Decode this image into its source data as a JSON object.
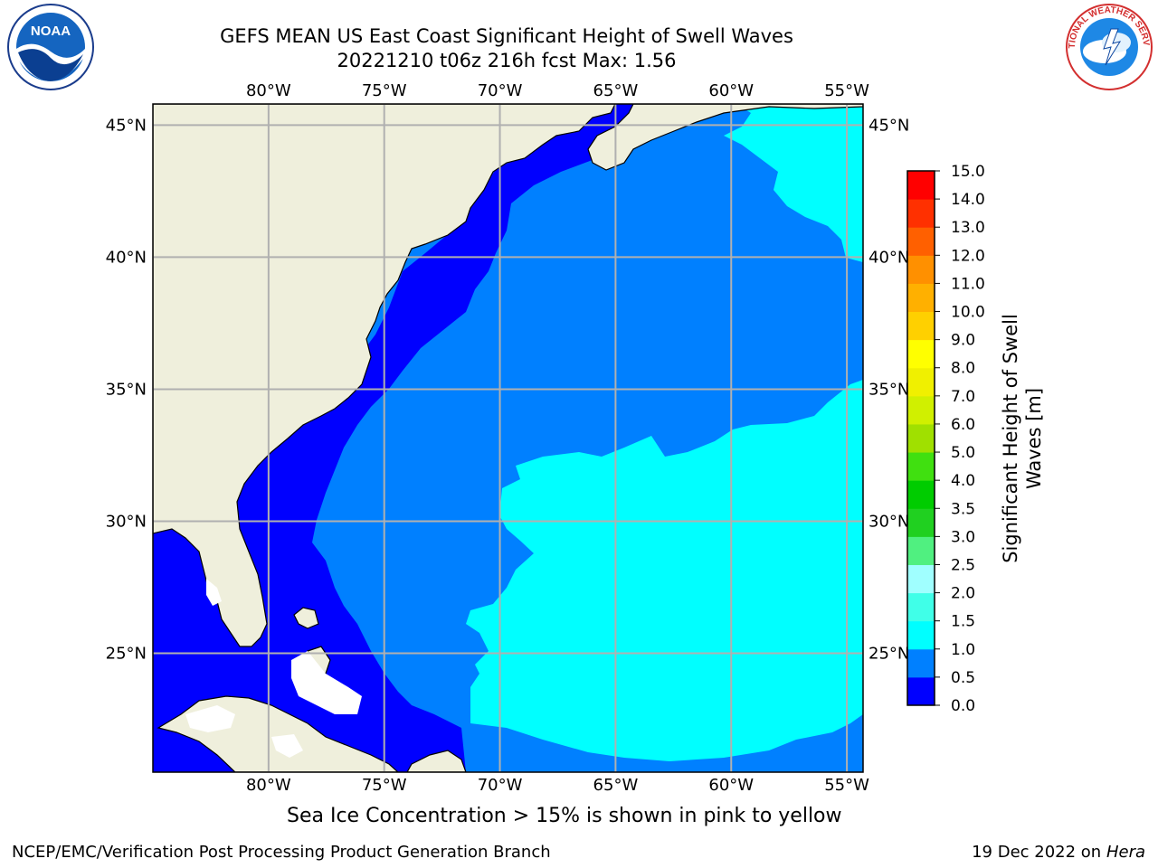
{
  "header": {
    "title_line1": "GEFS MEAN US East Coast Significant Height of Swell Waves",
    "title_line2": "20221210 t06z 216h fcst   Max: 1.56"
  },
  "logos": {
    "left": {
      "icon": "noaa-logo",
      "text": "NOAA"
    },
    "right": {
      "icon": "national-weather-service-logo",
      "text": "NATIONAL WEATHER SERVICE"
    }
  },
  "map": {
    "projection": "lat-lon",
    "lon_range": [
      -85,
      -54.3
    ],
    "lat_range": [
      20.5,
      45.8
    ],
    "lon_ticks": [
      -80,
      -75,
      -70,
      -65,
      -60,
      -55
    ],
    "lon_tick_labels": [
      "80°W",
      "75°W",
      "70°W",
      "65°W",
      "60°W",
      "55°W"
    ],
    "lat_ticks": [
      45,
      40,
      35,
      30,
      25
    ],
    "lat_tick_labels": [
      "45°N",
      "40°N",
      "35°N",
      "30°N",
      "25°N"
    ],
    "grid": true,
    "colors": {
      "land": "#efefdc",
      "gridline": "#b0b0b0",
      "swell_0_0p5": "#0000ff",
      "swell_0p5_1p0": "#0080ff",
      "swell_1p0_1p5": "#00ffff"
    }
  },
  "colorbar": {
    "label": "Significant Height of Swell Waves [m]",
    "levels": [
      "0.0",
      "0.5",
      "1.0",
      "1.5",
      "2.0",
      "2.5",
      "3.0",
      "3.5",
      "4.0",
      "5.0",
      "6.0",
      "7.0",
      "8.0",
      "9.0",
      "10.0",
      "11.0",
      "12.0",
      "13.0",
      "14.0",
      "15.0"
    ],
    "colors": [
      "#0000ff",
      "#0080ff",
      "#00ffff",
      "#40ffe8",
      "#a0ffff",
      "#50f080",
      "#20d020",
      "#00cc00",
      "#40e010",
      "#a0e000",
      "#d0f000",
      "#f0f000",
      "#ffff00",
      "#ffd000",
      "#ffb000",
      "#ff9000",
      "#ff6000",
      "#ff3000",
      "#ff0000"
    ]
  },
  "footer": {
    "note": "Sea Ice Concentration > 15% is shown in pink to yellow",
    "credit_left": "NCEP/EMC/Verification Post Processing Product Generation Branch",
    "credit_right_date": "19 Dec 2022 on",
    "credit_right_machine": "Hera"
  }
}
